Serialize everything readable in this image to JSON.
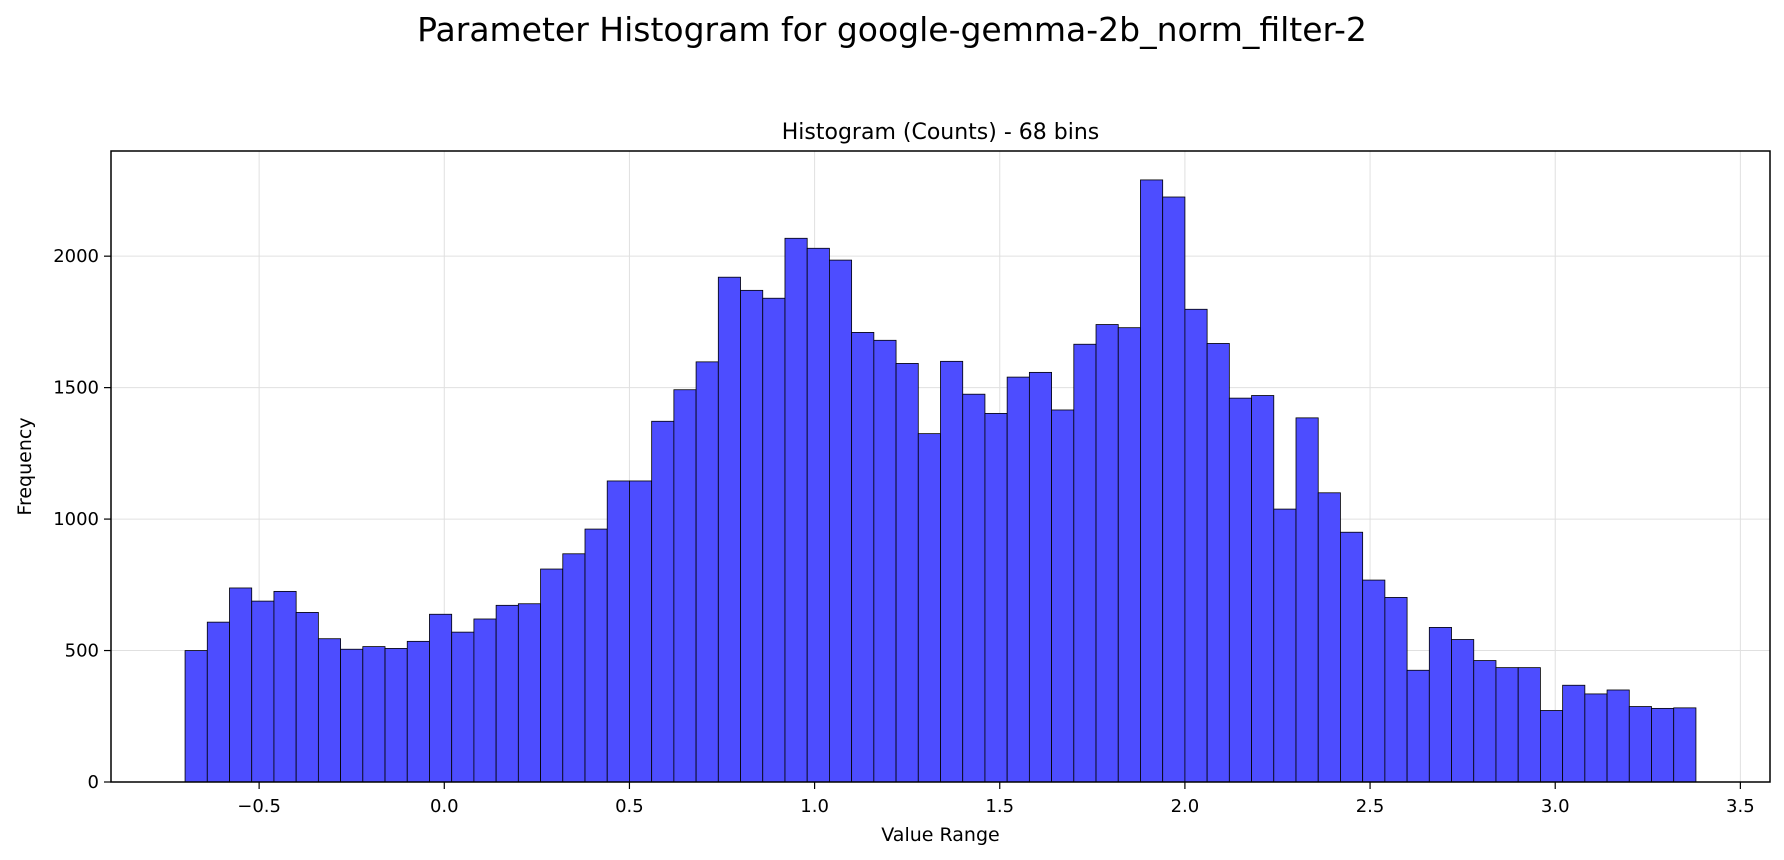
{
  "figure": {
    "suptitle": "Parameter Histogram for google-gemma-2b_norm_filter-2"
  },
  "chart_data": {
    "type": "bar",
    "title": "Histogram (Counts) - 68 bins",
    "xlabel": "Value Range",
    "ylabel": "Frequency",
    "bin_start": -0.7,
    "bin_width": 0.06,
    "values": [
      500,
      608,
      738,
      688,
      725,
      645,
      545,
      505,
      515,
      508,
      535,
      638,
      570,
      620,
      672,
      678,
      810,
      868,
      962,
      1145,
      1145,
      1372,
      1492,
      1598,
      1920,
      1870,
      1840,
      2068,
      2030,
      1985,
      1710,
      1680,
      1592,
      1325,
      1600,
      1475,
      1402,
      1540,
      1558,
      1415,
      1665,
      1740,
      1728,
      2290,
      2225,
      1798,
      1668,
      1460,
      1470,
      1038,
      1385,
      1100,
      950,
      768,
      702,
      425,
      588,
      542,
      462,
      435,
      435,
      272,
      368,
      335,
      350,
      287,
      280,
      282
    ],
    "xlim": [
      -0.9,
      3.58
    ],
    "ylim": [
      0,
      2400
    ],
    "xticks": [
      -0.5,
      0.0,
      0.5,
      1.0,
      1.5,
      2.0,
      2.5,
      3.0,
      3.5
    ],
    "xtick_labels": [
      "−0.5",
      "0.0",
      "0.5",
      "1.0",
      "1.5",
      "2.0",
      "2.5",
      "3.0",
      "3.5"
    ],
    "yticks": [
      0,
      500,
      1000,
      1500,
      2000
    ],
    "ytick_labels": [
      "0",
      "500",
      "1000",
      "1500",
      "2000"
    ],
    "grid": true,
    "colors": {
      "bar_fill": "#4d4dff",
      "bar_edge": "#000000",
      "grid": "#e0e0e0"
    }
  }
}
